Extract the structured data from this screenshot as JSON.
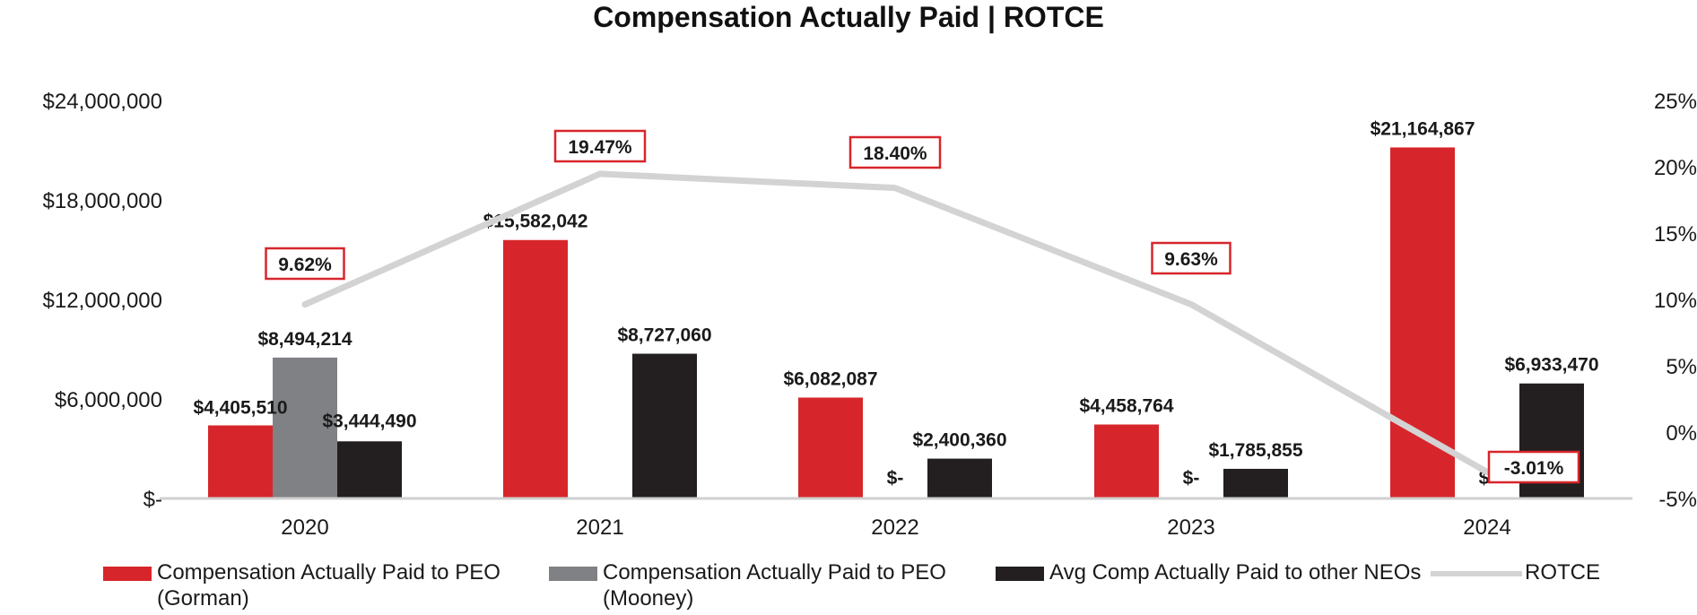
{
  "chart_data": {
    "type": "bar",
    "title": "Compensation Actually Paid | ROTCE",
    "categories": [
      "2020",
      "2021",
      "2022",
      "2023",
      "2024"
    ],
    "series": [
      {
        "name": "Compensation Actually Paid to PEO\n(Gorman)",
        "kind": "bar",
        "axis": "left",
        "color": "#d7262b",
        "values": [
          4405510,
          15582042,
          6082087,
          4458764,
          21164867
        ],
        "labels": [
          "$4,405,510",
          "$15,582,042",
          "$6,082,087",
          "$4,458,764",
          "$21,164,867"
        ]
      },
      {
        "name": "Compensation Actually Paid to PEO\n(Mooney)",
        "kind": "bar",
        "axis": "left",
        "color": "#808184",
        "values": [
          8494214,
          0,
          0,
          0,
          0
        ],
        "labels": [
          "$8,494,214",
          "",
          "$-",
          "$-",
          "$-"
        ]
      },
      {
        "name": "Avg Comp Actually Paid to other NEOs",
        "kind": "bar",
        "axis": "left",
        "color": "#231f20",
        "values": [
          3444490,
          8727060,
          2400360,
          1785855,
          6933470
        ],
        "labels": [
          "$3,444,490",
          "$8,727,060",
          "$2,400,360",
          "$1,785,855",
          "$6,933,470"
        ]
      },
      {
        "name": "ROTCE",
        "kind": "line",
        "axis": "right",
        "color": "#d3d3d3",
        "values": [
          9.62,
          19.47,
          18.4,
          9.63,
          -3.01
        ],
        "labels": [
          "9.62%",
          "19.47%",
          "18.40%",
          "9.63%",
          "-3.01%"
        ]
      }
    ],
    "y_left": {
      "min": 0,
      "max": 24000000,
      "ticks": [
        0,
        6000000,
        12000000,
        18000000,
        24000000
      ],
      "tick_labels": [
        "$-",
        "$6,000,000",
        "$12,000,000",
        "$18,000,000",
        "$24,000,000"
      ]
    },
    "y_right": {
      "min": -5,
      "max": 25,
      "ticks": [
        -5,
        0,
        5,
        10,
        15,
        20,
        25
      ],
      "tick_labels": [
        "-5%",
        "0%",
        "5%",
        "10%",
        "15%",
        "20%",
        "25%"
      ]
    },
    "xlabel": "",
    "ylabel": "",
    "grid": false,
    "legend_position": "bottom"
  }
}
